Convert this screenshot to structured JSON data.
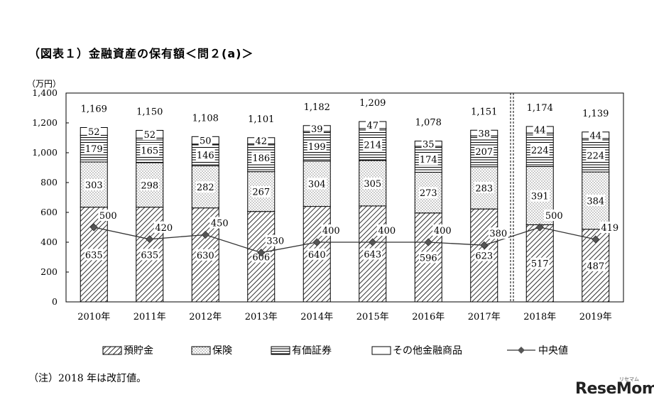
{
  "title": "（図表１）金融資産の保有額＜問２(a)＞",
  "note": "（注）2018 年は改訂値。",
  "logo": {
    "text": "ReseMom",
    "sub": "リセマム"
  },
  "chart_data": {
    "type": "bar",
    "stacked": true,
    "ylabel": "（万円）",
    "ylim": [
      0,
      1400
    ],
    "yticks": [
      "0",
      "200",
      "400",
      "600",
      "800",
      "1,000",
      "1,200",
      "1,400"
    ],
    "categories": [
      "2010年",
      "2011年",
      "2012年",
      "2013年",
      "2014年",
      "2015年",
      "2016年",
      "2017年",
      "2018年",
      "2019年"
    ],
    "series": [
      {
        "name": "預貯金",
        "values": [
          635,
          635,
          630,
          606,
          640,
          643,
          596,
          623,
          517,
          487
        ],
        "pattern": "diagonal-hatch"
      },
      {
        "name": "保険",
        "values": [
          303,
          298,
          282,
          267,
          304,
          305,
          273,
          283,
          391,
          384
        ],
        "pattern": "dots"
      },
      {
        "name": "有価証券",
        "values": [
          179,
          165,
          146,
          186,
          199,
          214,
          174,
          207,
          224,
          224
        ],
        "pattern": "horizontal-lines"
      },
      {
        "name": "その他金融商品",
        "values": [
          52,
          52,
          50,
          42,
          39,
          47,
          35,
          38,
          44,
          44
        ],
        "pattern": "blank"
      }
    ],
    "totals": [
      "1,169",
      "1,150",
      "1,108",
      "1,101",
      "1,182",
      "1,209",
      "1,078",
      "1,151",
      "1,174",
      "1,139"
    ],
    "line": {
      "name": "中央値",
      "values": [
        500,
        420,
        450,
        330,
        400,
        400,
        400,
        380,
        500,
        419
      ]
    },
    "legend_position": "bottom",
    "grid": false,
    "separator_after": "2017年"
  }
}
